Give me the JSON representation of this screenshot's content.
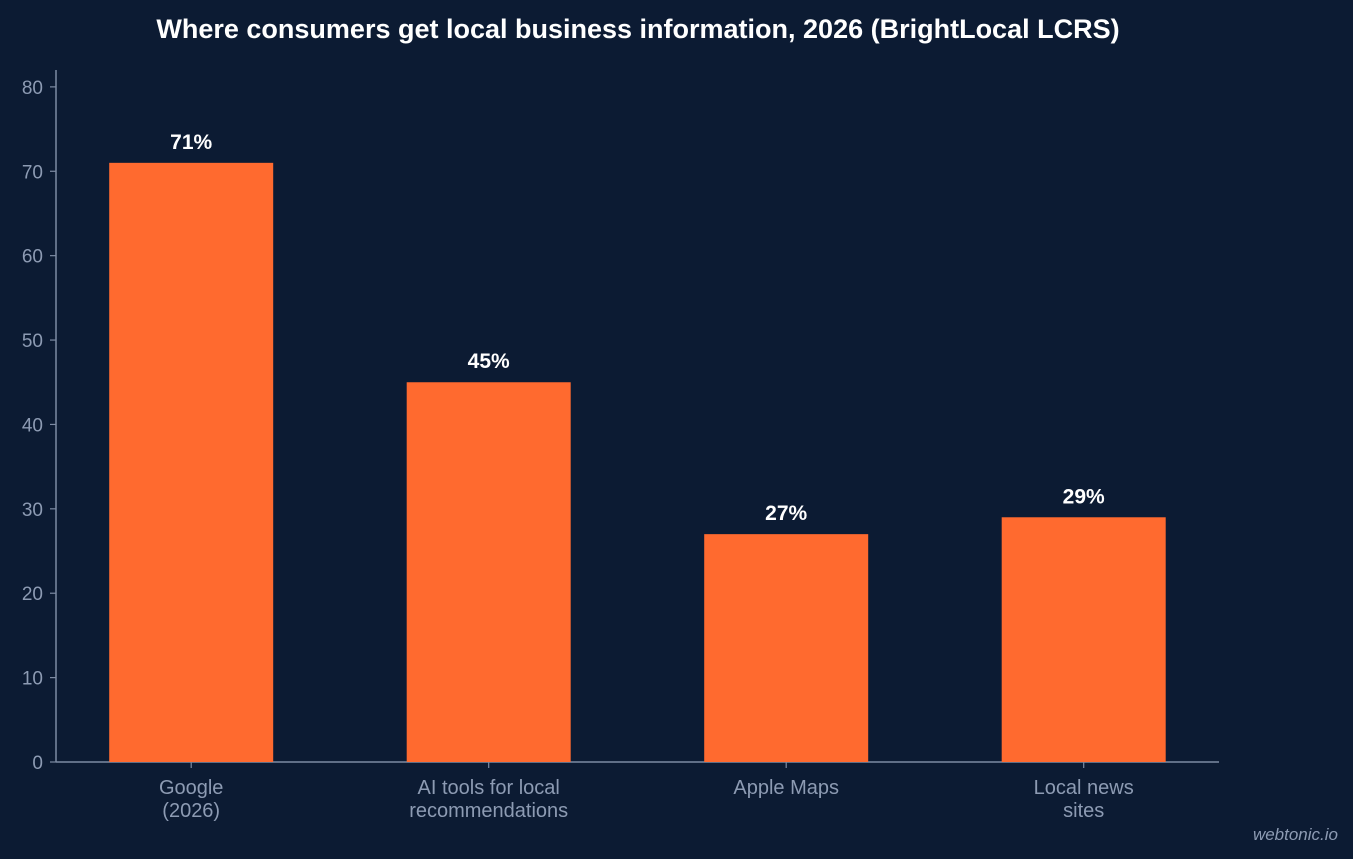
{
  "chart_data": {
    "type": "bar",
    "title": "Where consumers get local business information, 2026 (BrightLocal LCRS)",
    "categories": [
      [
        "Google",
        "(2026)"
      ],
      [
        "AI tools for local",
        "recommendations"
      ],
      [
        "Apple Maps"
      ],
      [
        "Local news",
        "sites"
      ]
    ],
    "values": [
      71,
      45,
      27,
      29
    ],
    "data_labels": [
      "71%",
      "45%",
      "27%",
      "29%"
    ],
    "xlabel": "",
    "ylabel": "",
    "ylim": [
      0,
      82
    ],
    "yticks": [
      0,
      10,
      20,
      30,
      40,
      50,
      60,
      70,
      80
    ],
    "grid": false,
    "colors": {
      "background": "#0c1b33",
      "bar": "#ff6a2f",
      "axis": "#7d8ba3",
      "tick_text": "#8d9bb3",
      "title_text": "#ffffff",
      "label_text": "#ffffff"
    }
  },
  "watermark": "webtonic.io"
}
